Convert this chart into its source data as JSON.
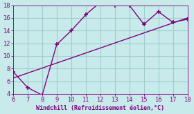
{
  "line1_x": [
    6,
    7,
    8,
    9,
    10,
    11,
    12,
    13,
    14,
    15,
    16,
    17,
    18
  ],
  "line1_y": [
    7.5,
    5,
    3.8,
    11.8,
    14,
    16.5,
    18.5,
    18,
    18,
    15,
    17,
    15.3,
    15.8
  ],
  "line2_x": [
    6,
    18
  ],
  "line2_y": [
    6.5,
    16
  ],
  "line_color": "#800080",
  "marker": "+",
  "bg_color": "#c8eaea",
  "grid_color": "#a0cccc",
  "xlabel": "Windchill (Refroidissement éolien,°C)",
  "xlabel_color": "#800080",
  "tick_color": "#800080",
  "xlim": [
    6,
    18
  ],
  "ylim": [
    4,
    18
  ],
  "xticks": [
    6,
    7,
    8,
    9,
    10,
    11,
    12,
    13,
    14,
    15,
    16,
    17,
    18
  ],
  "yticks": [
    4,
    6,
    8,
    10,
    12,
    14,
    16,
    18
  ]
}
